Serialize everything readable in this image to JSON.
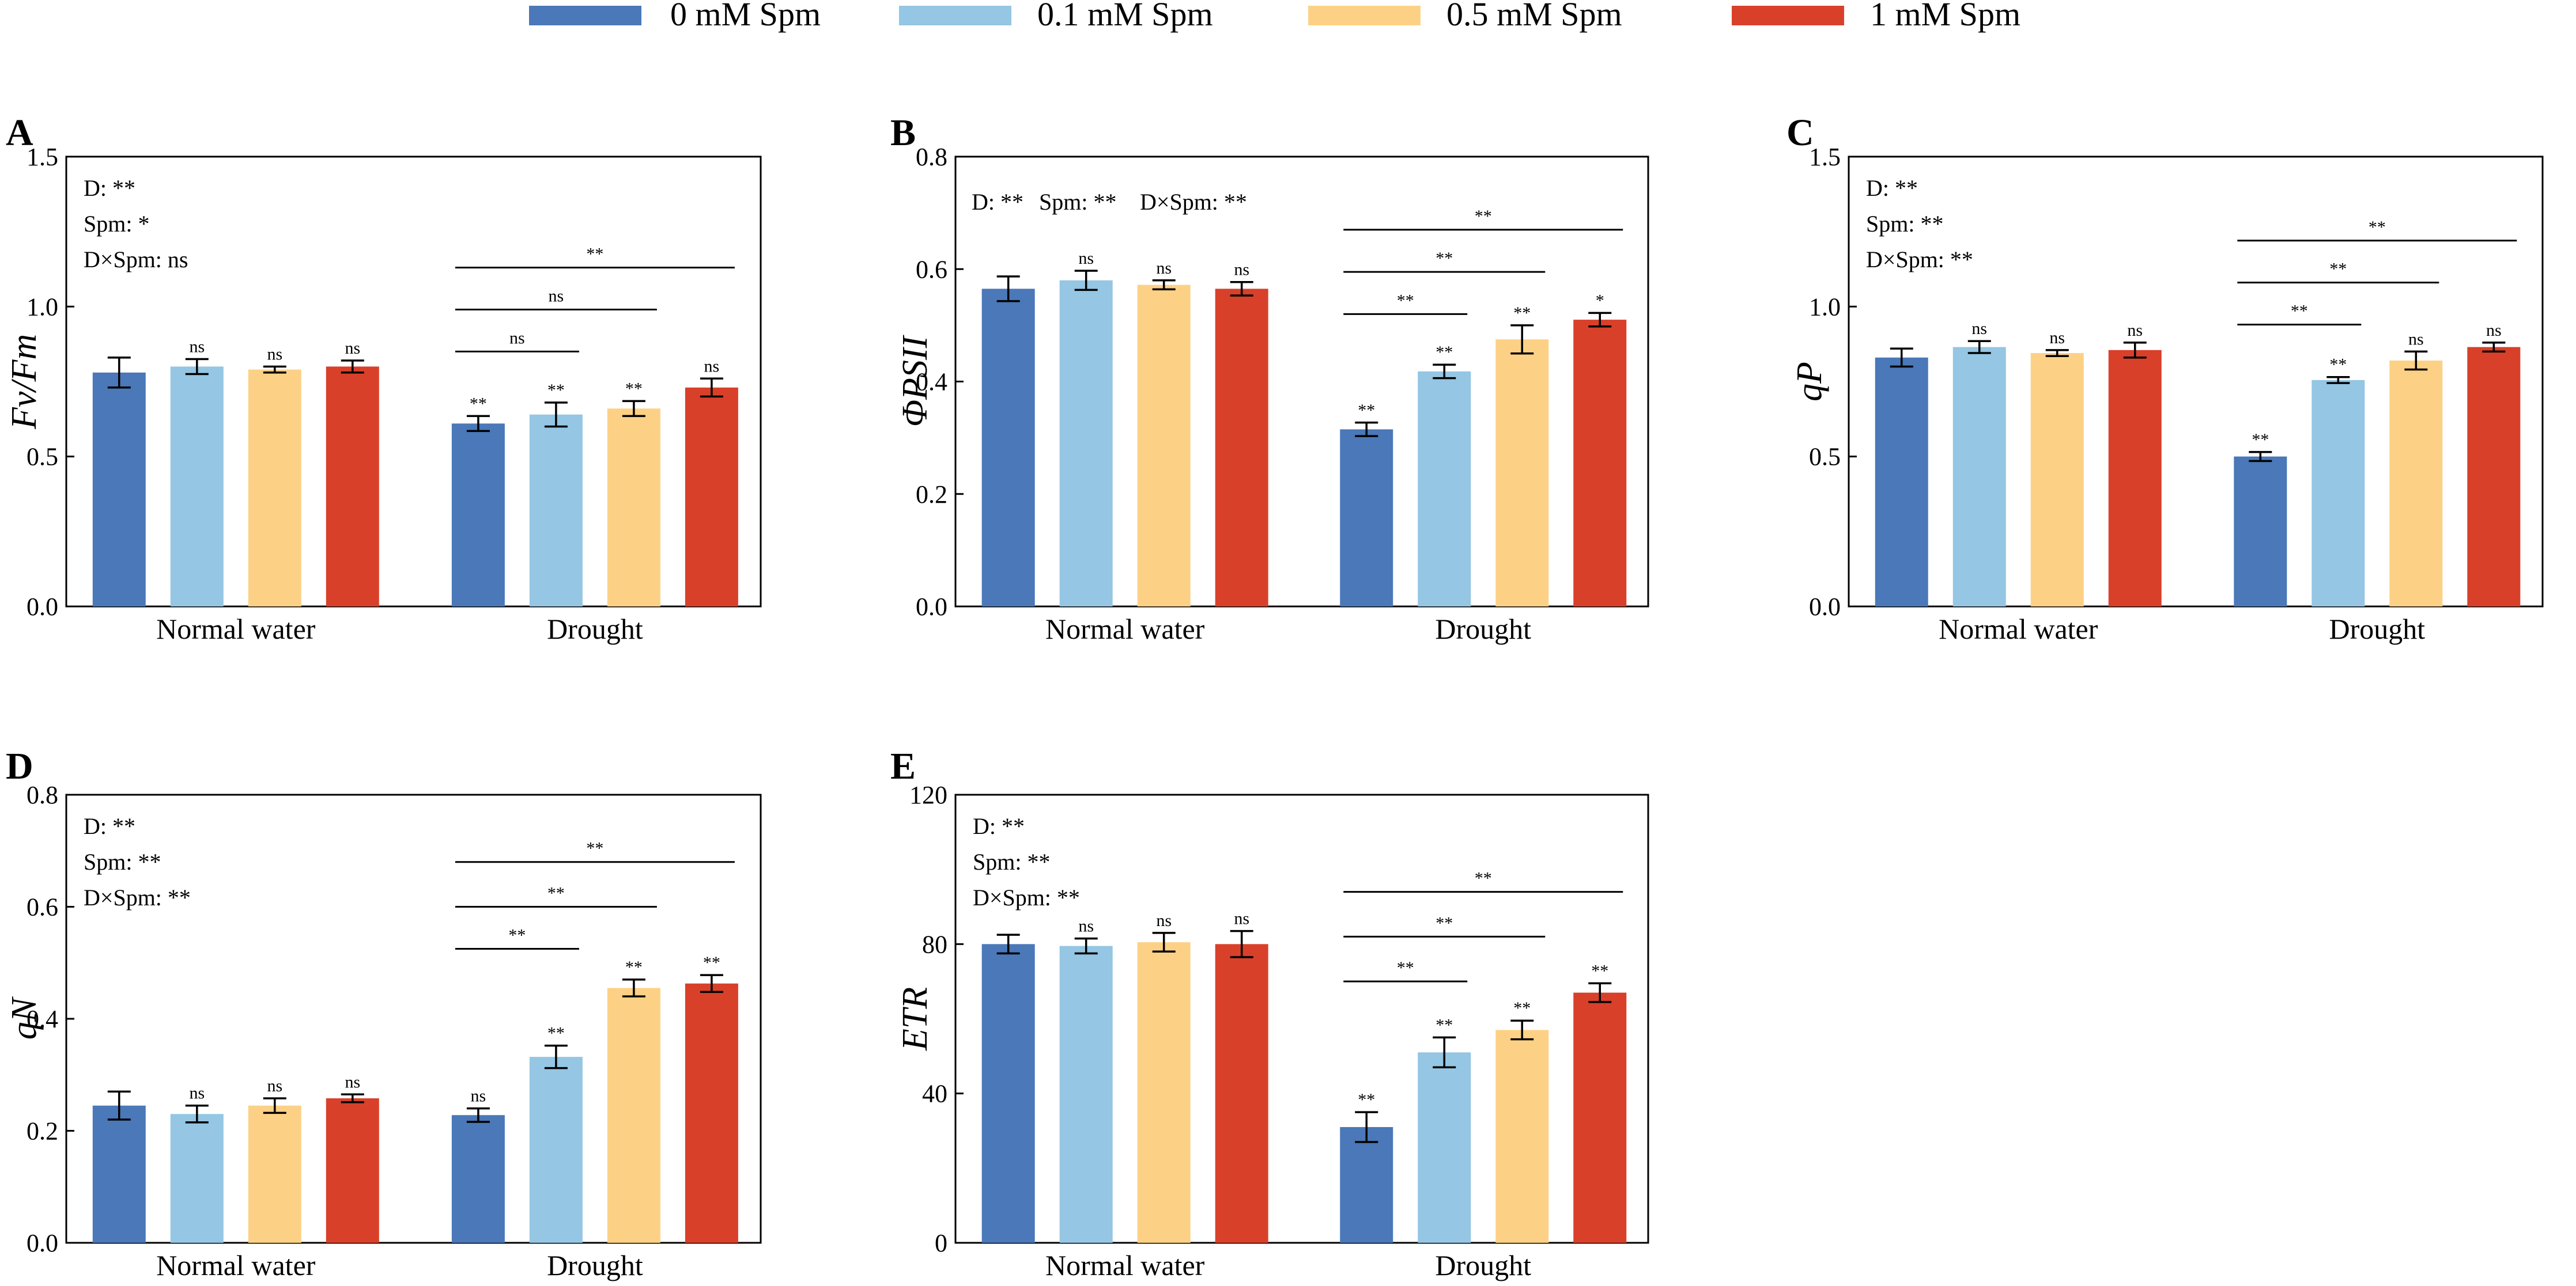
{
  "legend": [
    {
      "label": "0 mM Spm",
      "color": "#4a78b8"
    },
    {
      "label": "0.1 mM Spm",
      "color": "#95c6e3"
    },
    {
      "label": "0.5 mM Spm",
      "color": "#fdd185"
    },
    {
      "label": "1 mM Spm",
      "color": "#d9402a"
    }
  ],
  "chart_data": [
    {
      "panel": "A",
      "type": "bar",
      "ylabel": "Fv/Fm",
      "ylim": [
        0,
        1.5
      ],
      "yticks": [
        "0.0",
        "0.5",
        "1.0",
        "1.5"
      ],
      "categories": [
        "Normal water",
        "Drought"
      ],
      "series": [
        {
          "name": "0 mM Spm",
          "values": [
            0.78,
            0.61
          ],
          "errors": [
            0.05,
            0.025
          ],
          "labels": [
            "",
            "**"
          ]
        },
        {
          "name": "0.1 mM Spm",
          "values": [
            0.8,
            0.64
          ],
          "errors": [
            0.025,
            0.04
          ],
          "labels": [
            "ns",
            "**"
          ]
        },
        {
          "name": "0.5 mM Spm",
          "values": [
            0.79,
            0.66
          ],
          "errors": [
            0.01,
            0.025
          ],
          "labels": [
            "ns",
            "**"
          ]
        },
        {
          "name": "1 mM Spm",
          "values": [
            0.8,
            0.73
          ],
          "errors": [
            0.02,
            0.03
          ],
          "labels": [
            "ns",
            "ns"
          ]
        }
      ],
      "stats": [
        "D: **",
        "Spm:  *",
        "D×Spm:  ns"
      ],
      "stats_layout": "stacked",
      "comparisons": [
        {
          "to": 1,
          "level": 0.85,
          "label": "ns"
        },
        {
          "to": 2,
          "level": 0.99,
          "label": "ns"
        },
        {
          "to": 3,
          "level": 1.13,
          "label": "**"
        }
      ]
    },
    {
      "panel": "B",
      "type": "bar",
      "ylabel": "ΦPSII",
      "ylim": [
        0,
        0.8
      ],
      "yticks": [
        "0.0",
        "0.2",
        "0.4",
        "0.6",
        "0.8"
      ],
      "categories": [
        "Normal water",
        "Drought"
      ],
      "series": [
        {
          "name": "0 mM Spm",
          "values": [
            0.565,
            0.315
          ],
          "errors": [
            0.022,
            0.012
          ],
          "labels": [
            "",
            "**"
          ]
        },
        {
          "name": "0.1 mM Spm",
          "values": [
            0.58,
            0.418
          ],
          "errors": [
            0.017,
            0.012
          ],
          "labels": [
            "ns",
            "**"
          ]
        },
        {
          "name": "0.5 mM Spm",
          "values": [
            0.572,
            0.475
          ],
          "errors": [
            0.008,
            0.025
          ],
          "labels": [
            "ns",
            "**"
          ]
        },
        {
          "name": "1 mM Spm",
          "values": [
            0.565,
            0.51
          ],
          "errors": [
            0.012,
            0.012
          ],
          "labels": [
            "ns",
            "*"
          ]
        }
      ],
      "stats": [
        "D: **",
        "Spm:  **",
        "D×Spm:  **"
      ],
      "stats_layout": "row",
      "comparisons": [
        {
          "to": 1,
          "level": 0.52,
          "label": "**"
        },
        {
          "to": 2,
          "level": 0.595,
          "label": "**"
        },
        {
          "to": 3,
          "level": 0.67,
          "label": "**"
        }
      ]
    },
    {
      "panel": "C",
      "type": "bar",
      "ylabel": "qP",
      "ylim": [
        0,
        1.5
      ],
      "yticks": [
        "0.0",
        "0.5",
        "1.0",
        "1.5"
      ],
      "categories": [
        "Normal water",
        "Drought"
      ],
      "series": [
        {
          "name": "0 mM Spm",
          "values": [
            0.83,
            0.5
          ],
          "errors": [
            0.03,
            0.015
          ],
          "labels": [
            "",
            "**"
          ]
        },
        {
          "name": "0.1 mM Spm",
          "values": [
            0.865,
            0.755
          ],
          "errors": [
            0.02,
            0.01
          ],
          "labels": [
            "ns",
            "**"
          ]
        },
        {
          "name": "0.5 mM Spm",
          "values": [
            0.845,
            0.82
          ],
          "errors": [
            0.01,
            0.03
          ],
          "labels": [
            "ns",
            "ns"
          ]
        },
        {
          "name": "1 mM Spm",
          "values": [
            0.855,
            0.865
          ],
          "errors": [
            0.025,
            0.015
          ],
          "labels": [
            "ns",
            "ns"
          ]
        }
      ],
      "stats": [
        "D: **",
        "Spm:  **",
        "D×Spm:  **"
      ],
      "stats_layout": "stacked",
      "comparisons": [
        {
          "to": 1,
          "level": 0.94,
          "label": "**"
        },
        {
          "to": 2,
          "level": 1.08,
          "label": "**"
        },
        {
          "to": 3,
          "level": 1.22,
          "label": "**"
        }
      ]
    },
    {
      "panel": "D",
      "type": "bar",
      "ylabel": "qN",
      "ylim": [
        0,
        0.8
      ],
      "yticks": [
        "0.0",
        "0.2",
        "0.4",
        "0.6",
        "0.8"
      ],
      "categories": [
        "Normal water",
        "Drought"
      ],
      "series": [
        {
          "name": "0 mM Spm",
          "values": [
            0.245,
            0.228
          ],
          "errors": [
            0.025,
            0.012
          ],
          "labels": [
            "",
            "ns"
          ]
        },
        {
          "name": "0.1 mM Spm",
          "values": [
            0.23,
            0.332
          ],
          "errors": [
            0.015,
            0.02
          ],
          "labels": [
            "ns",
            "**"
          ]
        },
        {
          "name": "0.5 mM Spm",
          "values": [
            0.245,
            0.455
          ],
          "errors": [
            0.013,
            0.015
          ],
          "labels": [
            "ns",
            "**"
          ]
        },
        {
          "name": "1 mM Spm",
          "values": [
            0.258,
            0.463
          ],
          "errors": [
            0.007,
            0.015
          ],
          "labels": [
            "ns",
            "**"
          ]
        }
      ],
      "stats": [
        "D: **",
        "Spm:  **",
        "D×Spm:  **"
      ],
      "stats_layout": "stacked",
      "comparisons": [
        {
          "to": 1,
          "level": 0.525,
          "label": "**"
        },
        {
          "to": 2,
          "level": 0.6,
          "label": "**"
        },
        {
          "to": 3,
          "level": 0.68,
          "label": "**"
        }
      ]
    },
    {
      "panel": "E",
      "type": "bar",
      "ylabel": "ETR",
      "ylim": [
        0,
        120
      ],
      "yticks": [
        "0",
        "40",
        "80",
        "120"
      ],
      "categories": [
        "Normal water",
        "Drought"
      ],
      "series": [
        {
          "name": "0 mM Spm",
          "values": [
            80,
            31
          ],
          "errors": [
            2.5,
            4
          ],
          "labels": [
            "",
            "**"
          ]
        },
        {
          "name": "0.1 mM Spm",
          "values": [
            79.5,
            51
          ],
          "errors": [
            2,
            4
          ],
          "labels": [
            "ns",
            "**"
          ]
        },
        {
          "name": "0.5 mM Spm",
          "values": [
            80.5,
            57
          ],
          "errors": [
            2.5,
            2.5
          ],
          "labels": [
            "ns",
            "**"
          ]
        },
        {
          "name": "1 mM Spm",
          "values": [
            80,
            67
          ],
          "errors": [
            3.5,
            2.5
          ],
          "labels": [
            "ns",
            "**"
          ]
        }
      ],
      "stats": [
        "D: **",
        "Spm:  **",
        "D×Spm:  **"
      ],
      "stats_layout": "stacked",
      "comparisons": [
        {
          "to": 1,
          "level": 70,
          "label": "**"
        },
        {
          "to": 2,
          "level": 82,
          "label": "**"
        },
        {
          "to": 3,
          "level": 94,
          "label": "**"
        }
      ]
    }
  ]
}
